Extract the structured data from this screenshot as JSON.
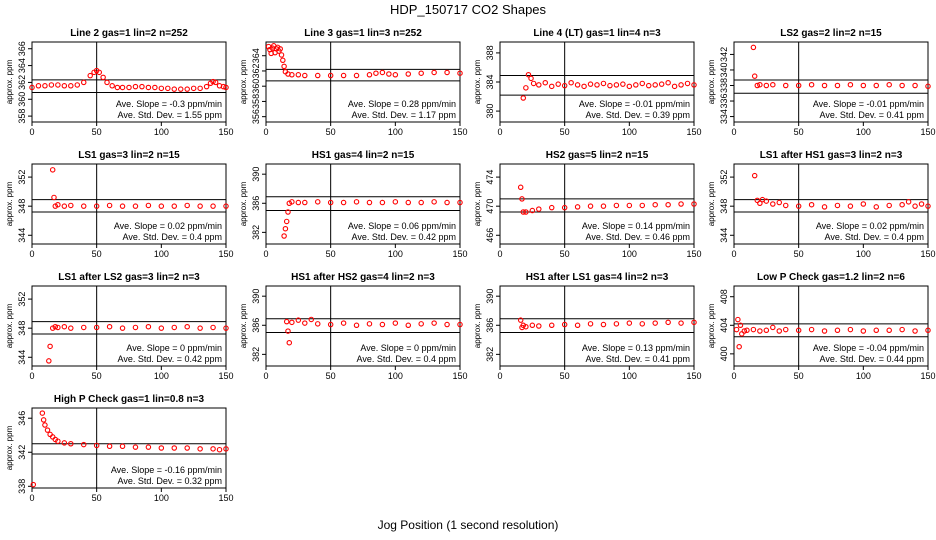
{
  "figure": {
    "title": "HDP_150717  CO2 Shapes",
    "xlabel": "Jog Position (1 second resolution)",
    "ylabel": "approx. ppm",
    "marker_color": "#ff0000"
  },
  "chart_data": [
    {
      "type": "scatter",
      "title": "Line 2 gas=1 lin=2 n=252",
      "xlim": [
        0,
        150
      ],
      "ylim": [
        357.3,
        366.8
      ],
      "yticks": [
        358,
        360,
        362,
        364,
        366
      ],
      "xticks": [
        0,
        50,
        100,
        150
      ],
      "hlines": [
        362.3,
        360.8
      ],
      "vline": 50,
      "slope": "-0.3",
      "std": "1.55",
      "x": [
        0,
        5,
        10,
        15,
        20,
        25,
        30,
        35,
        40,
        45,
        48,
        50,
        52,
        55,
        58,
        62,
        66,
        70,
        75,
        80,
        85,
        90,
        95,
        100,
        105,
        110,
        115,
        120,
        125,
        130,
        135,
        138,
        140,
        142,
        145,
        148,
        150
      ],
      "y": [
        361.4,
        361.6,
        361.6,
        361.7,
        361.7,
        361.6,
        361.6,
        361.7,
        362.0,
        362.8,
        363.2,
        363.4,
        363.2,
        362.6,
        362.0,
        361.6,
        361.4,
        361.4,
        361.4,
        361.5,
        361.5,
        361.4,
        361.4,
        361.3,
        361.3,
        361.2,
        361.2,
        361.2,
        361.3,
        361.3,
        361.5,
        361.9,
        362.1,
        362.0,
        361.6,
        361.5,
        361.4
      ]
    },
    {
      "type": "scatter",
      "title": "Line 3 gas=1 lin=3 n=252",
      "xlim": [
        0,
        150
      ],
      "ylim": [
        355.3,
        365.8
      ],
      "yticks": [
        356,
        358,
        360,
        362,
        364
      ],
      "xticks": [
        0,
        50,
        100,
        150
      ],
      "hlines": [
        362.2,
        360.7
      ],
      "vline": 50,
      "slope": "0.28",
      "std": "1.17",
      "x": [
        2,
        3,
        4,
        5,
        6,
        7,
        8,
        9,
        10,
        11,
        12,
        13,
        14,
        15,
        17,
        20,
        25,
        30,
        40,
        50,
        60,
        70,
        80,
        85,
        90,
        95,
        100,
        110,
        120,
        130,
        140,
        150
      ],
      "y": [
        365.2,
        364.8,
        364.3,
        365.0,
        365.3,
        364.4,
        364.9,
        365.1,
        364.6,
        364.9,
        364.1,
        363.4,
        362.6,
        361.9,
        361.6,
        361.5,
        361.5,
        361.4,
        361.4,
        361.4,
        361.4,
        361.4,
        361.5,
        361.7,
        361.8,
        361.6,
        361.5,
        361.6,
        361.7,
        361.8,
        361.8,
        361.7
      ]
    },
    {
      "type": "scatter",
      "title": "Line 4 (LT) gas=1 lin=4 n=3",
      "xlim": [
        0,
        150
      ],
      "ylim": [
        378.5,
        389.5
      ],
      "yticks": [
        380,
        384,
        388
      ],
      "xticks": [
        0,
        50,
        100,
        150
      ],
      "hlines": [
        384.9,
        382.2
      ],
      "vline": 50,
      "slope": "-0.01",
      "std": "0.39",
      "x": [
        18,
        20,
        22,
        24,
        26,
        30,
        35,
        40,
        45,
        50,
        55,
        60,
        65,
        70,
        75,
        80,
        85,
        90,
        95,
        100,
        105,
        110,
        115,
        120,
        125,
        130,
        135,
        140,
        145,
        150
      ],
      "y": [
        381.8,
        383.2,
        385.0,
        384.5,
        383.8,
        383.6,
        383.9,
        383.4,
        383.7,
        383.5,
        383.9,
        383.6,
        383.4,
        383.7,
        383.6,
        383.8,
        383.5,
        383.6,
        383.7,
        383.4,
        383.6,
        383.8,
        383.5,
        383.6,
        383.7,
        383.9,
        383.4,
        383.6,
        383.8,
        383.6
      ]
    },
    {
      "type": "scatter",
      "title": "LS2 gas=2 lin=2 n=15",
      "xlim": [
        0,
        150
      ],
      "ylim": [
        333.3,
        343.6
      ],
      "yticks": [
        334,
        336,
        338,
        340,
        342
      ],
      "xticks": [
        0,
        50,
        100,
        150
      ],
      "hlines": [
        338.7,
        337.0
      ],
      "vline": 50,
      "slope": "-0.01",
      "std": "0.41",
      "x": [
        15,
        16,
        18,
        20,
        25,
        30,
        40,
        50,
        60,
        70,
        80,
        90,
        100,
        110,
        120,
        130,
        140,
        150
      ],
      "y": [
        342.9,
        339.2,
        338.0,
        338.1,
        338.0,
        338.1,
        338.0,
        338.0,
        338.1,
        338.0,
        338.0,
        338.1,
        338.0,
        338.0,
        338.1,
        338.0,
        338.0,
        337.9
      ]
    },
    {
      "type": "scatter",
      "title": "LS1 gas=3 lin=2 n=15",
      "xlim": [
        0,
        150
      ],
      "ylim": [
        342.8,
        353.8
      ],
      "yticks": [
        344,
        348,
        352
      ],
      "xticks": [
        0,
        50,
        100,
        150
      ],
      "hlines": [
        348.9,
        347.2
      ],
      "vline": 50,
      "slope": "0.02",
      "std": "0.4",
      "x": [
        16,
        17,
        18,
        20,
        25,
        30,
        40,
        50,
        60,
        70,
        80,
        90,
        100,
        110,
        120,
        130,
        140,
        150
      ],
      "y": [
        353.0,
        349.2,
        348.0,
        348.2,
        348.0,
        348.1,
        348.0,
        348.0,
        348.1,
        348.0,
        348.0,
        348.1,
        348.0,
        348.0,
        348.1,
        348.0,
        348.0,
        348.0
      ]
    },
    {
      "type": "scatter",
      "title": "HS1 gas=4 lin=2 n=15",
      "xlim": [
        0,
        150
      ],
      "ylim": [
        380.4,
        391.4
      ],
      "yticks": [
        382,
        386,
        390
      ],
      "xticks": [
        0,
        50,
        100,
        150
      ],
      "hlines": [
        386.9,
        385.0
      ],
      "vline": 50,
      "slope": "0.06",
      "std": "0.42",
      "x": [
        14,
        15,
        16,
        17,
        18,
        20,
        25,
        30,
        40,
        50,
        60,
        70,
        80,
        90,
        100,
        110,
        120,
        130,
        140,
        150
      ],
      "y": [
        381.5,
        382.5,
        383.5,
        384.8,
        386.0,
        386.2,
        386.1,
        386.1,
        386.2,
        386.1,
        386.1,
        386.2,
        386.1,
        386.1,
        386.2,
        386.1,
        386.1,
        386.2,
        386.1,
        386.1
      ]
    },
    {
      "type": "scatter",
      "title": "HS2 gas=5 lin=2 n=15",
      "xlim": [
        0,
        150
      ],
      "ylim": [
        464.8,
        475.8
      ],
      "yticks": [
        466,
        470,
        474
      ],
      "xticks": [
        0,
        50,
        100,
        150
      ],
      "hlines": [
        471.0,
        469.2
      ],
      "vline": 50,
      "slope": "0.14",
      "std": "0.46",
      "x": [
        16,
        17,
        18,
        20,
        25,
        30,
        40,
        50,
        60,
        70,
        80,
        90,
        100,
        110,
        120,
        130,
        140,
        150
      ],
      "y": [
        472.6,
        471.0,
        469.2,
        469.2,
        469.4,
        469.6,
        469.8,
        469.8,
        469.9,
        470.0,
        470.0,
        470.1,
        470.1,
        470.1,
        470.2,
        470.2,
        470.3,
        470.3
      ]
    },
    {
      "type": "scatter",
      "title": "LS1 after HS1 gas=3 lin=2 n=3",
      "xlim": [
        0,
        150
      ],
      "ylim": [
        342.8,
        353.8
      ],
      "yticks": [
        344,
        348,
        352
      ],
      "xticks": [
        0,
        50,
        100,
        150
      ],
      "hlines": [
        348.9,
        347.2
      ],
      "vline": 50,
      "slope": "0.02",
      "std": "0.4",
      "x": [
        16,
        18,
        20,
        22,
        25,
        30,
        35,
        40,
        50,
        60,
        70,
        80,
        90,
        100,
        110,
        120,
        130,
        135,
        140,
        145,
        150
      ],
      "y": [
        352.2,
        348.8,
        348.4,
        348.9,
        348.7,
        348.3,
        348.5,
        348.1,
        348.0,
        348.2,
        347.9,
        348.1,
        348.0,
        348.3,
        347.9,
        348.1,
        348.2,
        348.6,
        348.0,
        348.3,
        348.0
      ]
    },
    {
      "type": "scatter",
      "title": "LS1 after LS2 gas=3 lin=2 n=3",
      "xlim": [
        0,
        150
      ],
      "ylim": [
        342.8,
        353.8
      ],
      "yticks": [
        344,
        348,
        352
      ],
      "xticks": [
        0,
        50,
        100,
        150
      ],
      "hlines": [
        348.9,
        347.2
      ],
      "vline": 50,
      "slope": "0",
      "std": "0.42",
      "x": [
        13,
        14,
        16,
        18,
        20,
        25,
        30,
        40,
        50,
        60,
        70,
        80,
        90,
        100,
        110,
        120,
        130,
        140,
        150
      ],
      "y": [
        343.5,
        345.5,
        348.0,
        348.2,
        348.1,
        348.2,
        348.0,
        348.1,
        348.1,
        348.2,
        348.0,
        348.1,
        348.2,
        348.0,
        348.1,
        348.2,
        348.0,
        348.1,
        348.0
      ]
    },
    {
      "type": "scatter",
      "title": "HS1 after HS2 gas=4 lin=2 n=3",
      "xlim": [
        0,
        150
      ],
      "ylim": [
        380.4,
        391.4
      ],
      "yticks": [
        382,
        386,
        390
      ],
      "xticks": [
        0,
        50,
        100,
        150
      ],
      "hlines": [
        386.9,
        385.0
      ],
      "vline": 50,
      "slope": "0",
      "std": "0.4",
      "x": [
        16,
        17,
        18,
        20,
        25,
        30,
        35,
        40,
        50,
        60,
        70,
        80,
        90,
        100,
        110,
        120,
        130,
        140,
        150
      ],
      "y": [
        386.5,
        385.2,
        383.6,
        386.4,
        386.7,
        386.3,
        386.8,
        386.2,
        386.1,
        386.3,
        386.0,
        386.2,
        386.1,
        386.3,
        386.0,
        386.2,
        386.3,
        386.1,
        386.1
      ]
    },
    {
      "type": "scatter",
      "title": "HS1 after LS1 gas=4 lin=2 n=3",
      "xlim": [
        0,
        150
      ],
      "ylim": [
        380.4,
        391.4
      ],
      "yticks": [
        382,
        386,
        390
      ],
      "xticks": [
        0,
        50,
        100,
        150
      ],
      "hlines": [
        386.9,
        385.0
      ],
      "vline": 50,
      "slope": "0.13",
      "std": "0.41",
      "x": [
        16,
        17,
        18,
        20,
        25,
        30,
        40,
        50,
        60,
        70,
        80,
        90,
        100,
        110,
        120,
        130,
        140,
        150
      ],
      "y": [
        386.7,
        385.7,
        386.0,
        385.8,
        386.0,
        385.9,
        386.0,
        386.1,
        386.0,
        386.2,
        386.1,
        386.2,
        386.3,
        386.2,
        386.3,
        386.4,
        386.3,
        386.4
      ]
    },
    {
      "type": "scatter",
      "title": "Low P Check gas=1.2 lin=2 n=6",
      "xlim": [
        0,
        150
      ],
      "ylim": [
        398.3,
        409.5
      ],
      "yticks": [
        400,
        404,
        408
      ],
      "xticks": [
        0,
        50,
        100,
        150
      ],
      "hlines": [
        404.2,
        402.4
      ],
      "vline": 50,
      "slope": "-0.04",
      "std": "0.44",
      "x": [
        2,
        3,
        4,
        5,
        6,
        8,
        10,
        15,
        20,
        25,
        30,
        35,
        40,
        50,
        60,
        70,
        80,
        90,
        100,
        110,
        120,
        130,
        140,
        150
      ],
      "y": [
        403.4,
        404.8,
        401.0,
        404.0,
        402.8,
        403.2,
        403.3,
        403.4,
        403.2,
        403.3,
        403.7,
        403.2,
        403.4,
        403.3,
        403.4,
        403.2,
        403.3,
        403.4,
        403.2,
        403.3,
        403.3,
        403.4,
        403.2,
        403.3
      ]
    },
    {
      "type": "scatter",
      "title": "High P Check gas=1 lin=0.8 n=3",
      "xlim": [
        0,
        150
      ],
      "ylim": [
        337.8,
        347.2
      ],
      "yticks": [
        338,
        342,
        346
      ],
      "xticks": [
        0,
        50,
        100,
        150
      ],
      "hlines": [
        343.0,
        341.8
      ],
      "vline": 50,
      "slope": "-0.16",
      "std": "0.32",
      "x": [
        1,
        8,
        9,
        10,
        12,
        14,
        16,
        18,
        20,
        25,
        30,
        40,
        50,
        60,
        70,
        80,
        90,
        100,
        110,
        120,
        130,
        140,
        145,
        150
      ],
      "y": [
        338.2,
        346.6,
        345.8,
        345.2,
        344.6,
        344.1,
        343.8,
        343.5,
        343.3,
        343.1,
        343.0,
        342.9,
        342.8,
        342.7,
        342.7,
        342.6,
        342.6,
        342.5,
        342.5,
        342.5,
        342.4,
        342.4,
        342.3,
        342.4
      ]
    }
  ]
}
